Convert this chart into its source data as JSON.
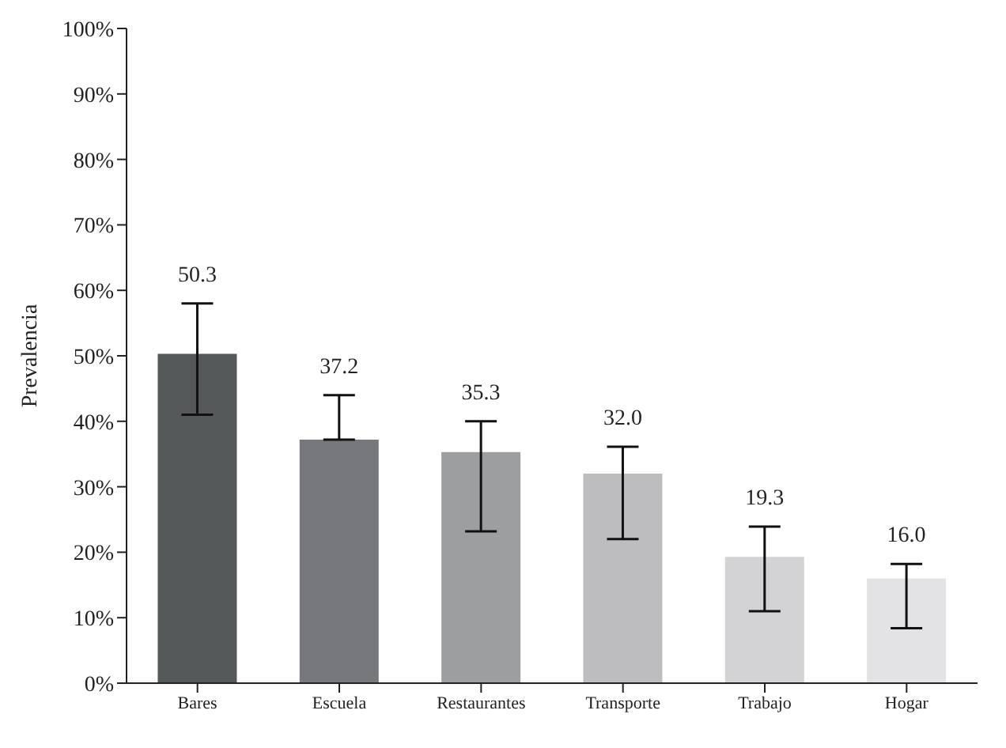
{
  "chart_data": {
    "type": "bar",
    "ylabel": "Prevalencia",
    "categories": [
      "Bares",
      "Escuela",
      "Restaurantes",
      "Transporte",
      "Trabajo",
      "Hogar"
    ],
    "values": [
      50.3,
      37.2,
      35.3,
      32.0,
      19.3,
      16.0
    ],
    "colors": [
      "#555858",
      "#76787c",
      "#9c9ea0",
      "#bdbdbf",
      "#d3d3d5",
      "#e3e3e5"
    ],
    "errors": [
      [
        41,
        58
      ],
      [
        37.2,
        44
      ],
      [
        23.2,
        40.0
      ],
      [
        22.0,
        36.1
      ],
      [
        11.0,
        23.9
      ],
      [
        8.4,
        18.2
      ]
    ],
    "value_labels": [
      "50.3",
      "37.2",
      "35.3",
      "32.0",
      "19.3",
      "16.0"
    ],
    "ylim": [
      0,
      100
    ],
    "yticks": [
      {
        "value": 0,
        "label": "0%"
      },
      {
        "value": 10,
        "label": "10%"
      },
      {
        "value": 20,
        "label": "20%"
      },
      {
        "value": 30,
        "label": "30%"
      },
      {
        "value": 40,
        "label": "40%"
      },
      {
        "value": 50,
        "label": "50%"
      },
      {
        "value": 60,
        "label": "60%"
      },
      {
        "value": 70,
        "label": "70%"
      },
      {
        "value": 80,
        "label": "80%"
      },
      {
        "value": 90,
        "label": "90%"
      },
      {
        "value": 100,
        "label": "100%"
      }
    ],
    "grid": false,
    "legend": false
  }
}
